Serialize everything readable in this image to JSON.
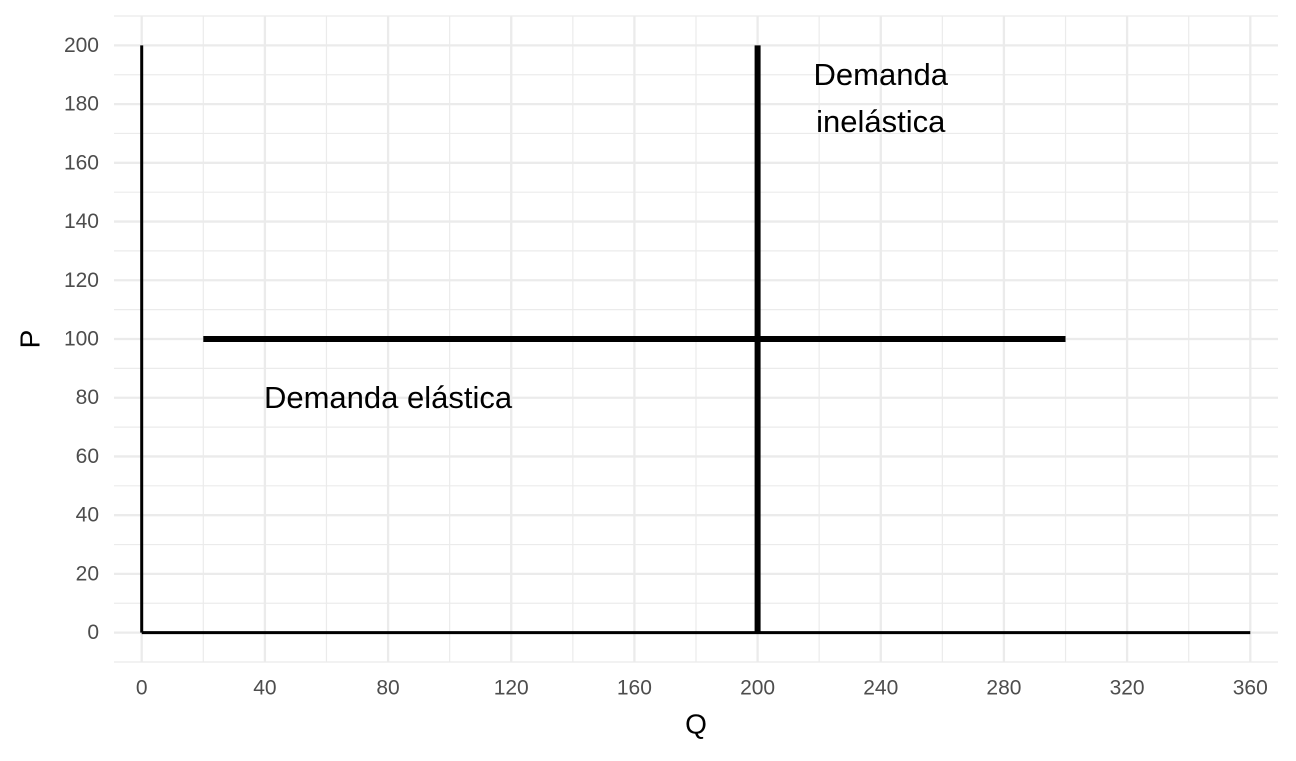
{
  "chart_data": {
    "type": "line",
    "title": "",
    "xlabel": "Q",
    "ylabel": "P",
    "xlim": [
      -9,
      369
    ],
    "ylim": [
      -10,
      210
    ],
    "x_ticks": [
      0,
      40,
      80,
      120,
      160,
      200,
      240,
      280,
      320,
      360
    ],
    "y_ticks": [
      0,
      20,
      40,
      60,
      80,
      100,
      120,
      140,
      160,
      180,
      200
    ],
    "x_tick_labels": [
      "0",
      "40",
      "80",
      "120",
      "160",
      "200",
      "240",
      "280",
      "320",
      "360"
    ],
    "y_tick_labels": [
      "0",
      "20",
      "40",
      "60",
      "80",
      "100",
      "120",
      "140",
      "160",
      "180",
      "200"
    ],
    "grid": true,
    "theme": "minimal",
    "colors": {
      "grid": "#ebebeb",
      "line": "#000000",
      "tick_text": "#4d4d4d"
    },
    "series": [
      {
        "name": "",
        "role": "y-axis-line",
        "x": [
          0,
          0
        ],
        "y": [
          0,
          200
        ],
        "weight": "thin"
      },
      {
        "name": "",
        "role": "x-axis-line",
        "x": [
          0,
          360
        ],
        "y": [
          0,
          0
        ],
        "weight": "thin"
      },
      {
        "name": "",
        "role": "inelastic-demand",
        "x": [
          200,
          200
        ],
        "y": [
          0,
          200
        ],
        "weight": "thick"
      },
      {
        "name": "",
        "role": "elastic-demand",
        "x": [
          20,
          300
        ],
        "y": [
          100,
          100
        ],
        "weight": "thick"
      }
    ],
    "annotations": [
      {
        "lines": [
          "Demanda",
          "inelástica"
        ],
        "x": 240,
        "y": 182
      },
      {
        "lines": [
          "Demanda elástica"
        ],
        "x": 80,
        "y": 80
      }
    ]
  }
}
